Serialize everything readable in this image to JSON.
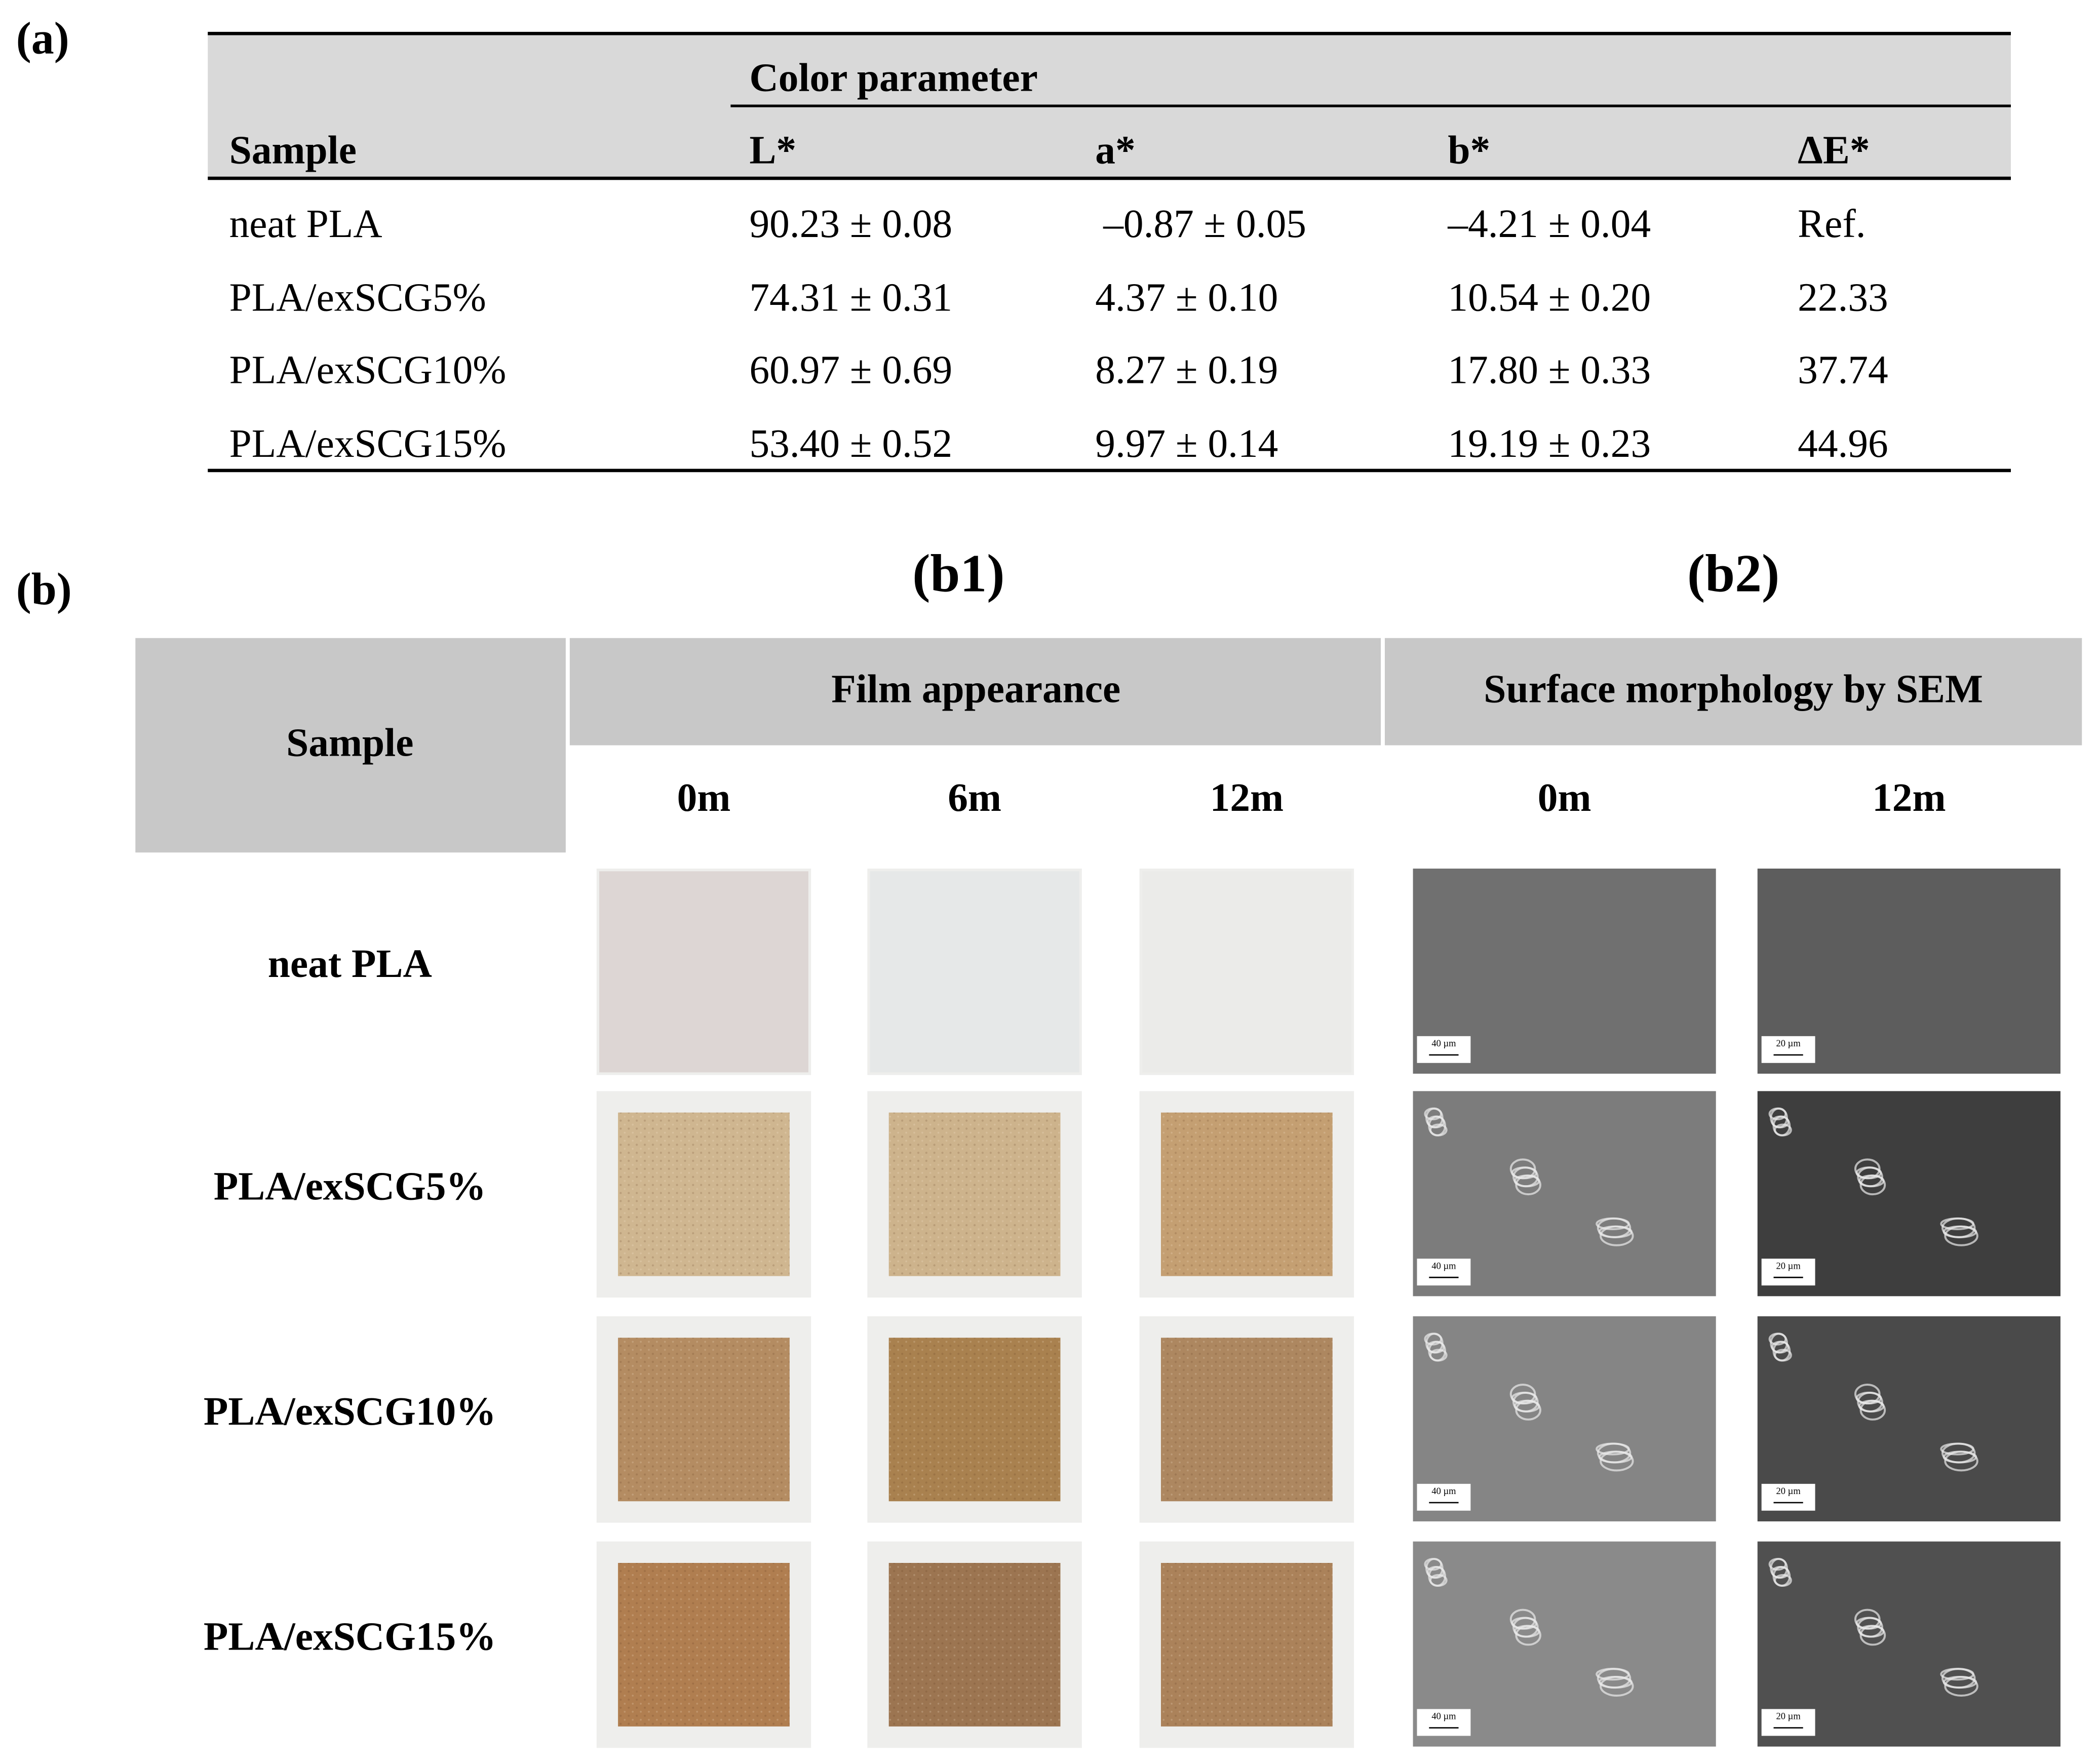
{
  "panel_a": {
    "label": "(a)",
    "table": {
      "group_header": "Color parameter",
      "columns": [
        "Sample",
        "L*",
        "a*",
        "b*",
        "ΔE*"
      ],
      "rows": [
        [
          "neat PLA",
          "90.23 ± 0.08",
          "–0.87 ± 0.05",
          "–4.21 ± 0.04",
          "Ref."
        ],
        [
          "PLA/exSCG5%",
          "74.31 ± 0.31",
          "4.37 ± 0.10",
          "10.54 ± 0.20",
          "22.33"
        ],
        [
          "PLA/exSCG10%",
          "60.97 ± 0.69",
          "8.27 ± 0.19",
          "17.80 ± 0.33",
          "37.74"
        ],
        [
          "PLA/exSCG15%",
          "53.40 ± 0.52",
          "9.97 ± 0.14",
          "19.19 ± 0.23",
          "44.96"
        ]
      ]
    }
  },
  "panel_b": {
    "label": "(b)",
    "b1_title": "(b1)",
    "b2_title": "(b2)",
    "sample_header": "Sample",
    "film_header": "Film appearance",
    "sem_header": "Surface morphology by SEM",
    "film_times": [
      "0m",
      "6m",
      "12m"
    ],
    "sem_times": [
      "0m",
      "12m"
    ],
    "samples": [
      "neat PLA",
      "PLA/exSCG5%",
      "PLA/exSCG10%",
      "PLA/exSCG15%"
    ],
    "scale_bars": [
      "40 µm",
      "20 µm"
    ]
  }
}
